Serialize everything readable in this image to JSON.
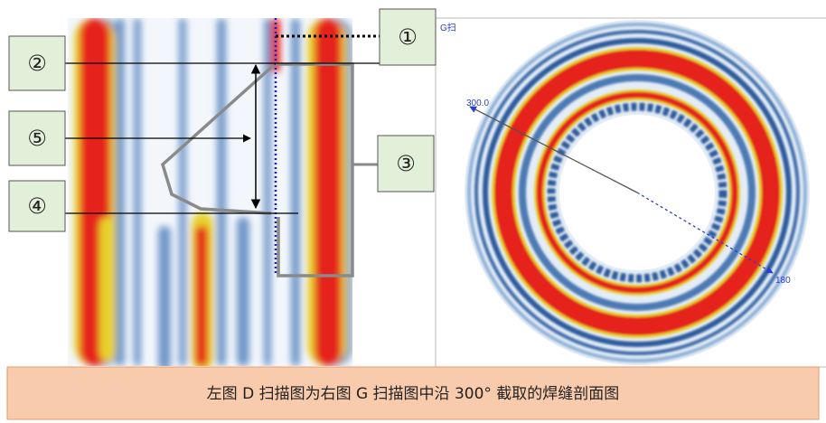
{
  "labels": {
    "l1": "①",
    "l2": "②",
    "l3": "③",
    "l4": "④",
    "l5": "⑤"
  },
  "g_scan": {
    "title": "G扫",
    "angle_start": "300.0",
    "angle_end": "180"
  },
  "caption": "左图 D 扫描图为右图 G 扫描图中沿 300° 截取的焊缝剖面图"
}
